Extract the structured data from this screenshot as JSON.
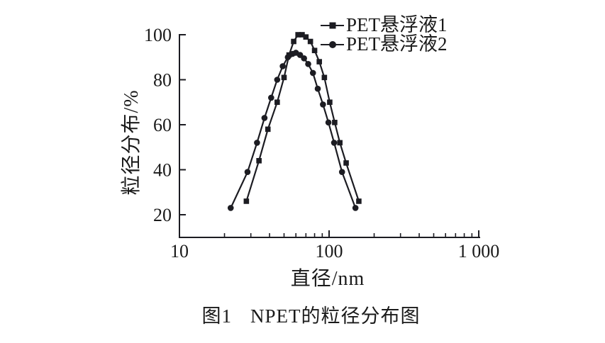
{
  "figure": {
    "background": "#ffffff",
    "ink_color": "#1c1c22"
  },
  "legend": {
    "items": [
      {
        "label": "PET悬浮液1",
        "marker": "square"
      },
      {
        "label": "PET悬浮液2",
        "marker": "circle"
      }
    ]
  },
  "axes": {
    "x_title": "直径/nm",
    "y_title": "粒径分布/%"
  },
  "caption": {
    "prefix": "图1",
    "text": "NPET的粒径分布图"
  },
  "chart_data": {
    "type": "line",
    "title": "",
    "x_scale": "log",
    "xlabel": "直径/nm",
    "ylabel": "粒径分布/%",
    "xlim": [
      10,
      1000
    ],
    "ylim": [
      10,
      100
    ],
    "grid": false,
    "legend_position": "top-right",
    "x_tick_values": [
      10,
      100,
      1000
    ],
    "x_tick_labels": [
      "10",
      "100",
      "1 000"
    ],
    "y_tick_values": [
      20,
      40,
      60,
      80,
      100
    ],
    "y_tick_labels": [
      "20",
      "40",
      "60",
      "80",
      "100"
    ],
    "series": [
      {
        "name": "PET悬浮液1",
        "marker": "square",
        "x": [
          28,
          34,
          39,
          45,
          50,
          54,
          58,
          62,
          66,
          70,
          75,
          80,
          86,
          93,
          101,
          109,
          118,
          130,
          158
        ],
        "y": [
          26,
          44,
          58,
          70,
          81,
          91,
          97,
          100,
          100,
          99,
          97,
          93,
          88,
          81,
          70,
          61,
          52,
          43,
          26
        ]
      },
      {
        "name": "PET悬浮液2",
        "marker": "circle",
        "x": [
          22,
          28.5,
          33,
          37,
          41,
          45,
          49,
          53,
          57,
          60,
          64,
          68,
          72.5,
          78,
          84,
          91,
          99,
          108,
          122,
          150
        ],
        "y": [
          23,
          39,
          52,
          63,
          72,
          80,
          86,
          90,
          91.5,
          92,
          91,
          89.5,
          87,
          83,
          76,
          69,
          61,
          52,
          39,
          23
        ]
      }
    ]
  }
}
